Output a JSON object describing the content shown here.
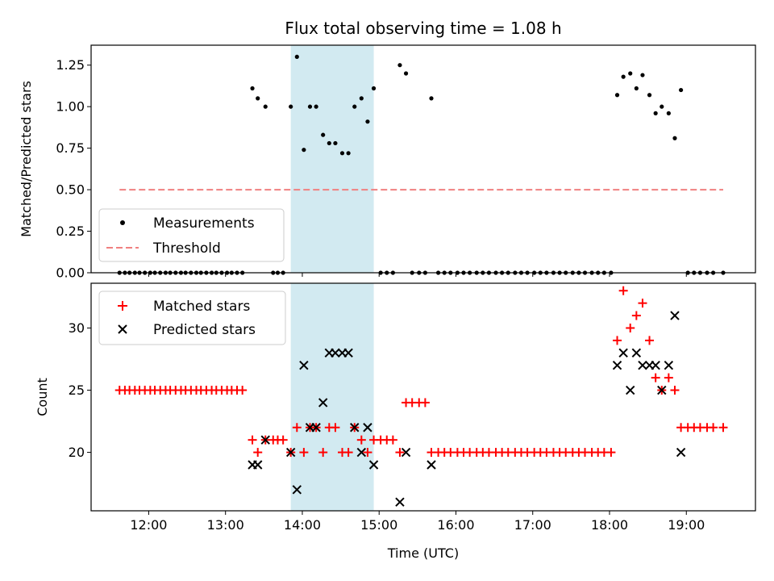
{
  "chart_data": {
    "title": "Flux total observing time = 1.08 h",
    "xlabel": "Time (UTC)",
    "x_tick_labels": [
      "12:00",
      "13:00",
      "14:00",
      "15:00",
      "16:00",
      "17:00",
      "18:00",
      "19:00"
    ],
    "x_tick_hours": [
      12,
      13,
      14,
      15,
      16,
      17,
      18,
      19
    ],
    "xlim_hours": [
      11.25,
      19.9
    ],
    "shaded_interval_hours": [
      13.85,
      14.93
    ],
    "shade_color": "#add8e6",
    "panels": [
      {
        "type": "scatter",
        "ylabel": "Matched/Predicted stars",
        "ylim": [
          0,
          1.37
        ],
        "y_ticks": [
          0.0,
          0.25,
          0.5,
          0.75,
          1.0,
          1.25
        ],
        "y_tick_labels": [
          "0.00",
          "0.25",
          "0.50",
          "0.75",
          "1.00",
          "1.25"
        ],
        "legend_position": "lower-left",
        "series": [
          {
            "name": "Measurements",
            "marker": "dot",
            "color": "#000000",
            "x": [
              11.62,
              11.69,
              11.75,
              11.82,
              11.88,
              11.95,
              12.02,
              12.08,
              12.15,
              12.22,
              12.28,
              12.35,
              12.42,
              12.48,
              12.55,
              12.62,
              12.68,
              12.75,
              12.82,
              12.88,
              12.95,
              13.02,
              13.08,
              13.15,
              13.22,
              13.35,
              13.42,
              13.52,
              13.62,
              13.68,
              13.75,
              13.85,
              13.93,
              14.02,
              14.1,
              14.18,
              14.27,
              14.35,
              14.43,
              14.52,
              14.6,
              14.68,
              14.77,
              14.85,
              14.93,
              15.02,
              15.1,
              15.18,
              15.27,
              15.35,
              15.43,
              15.52,
              15.6,
              15.68,
              15.77,
              15.85,
              15.93,
              16.02,
              16.1,
              16.18,
              16.27,
              16.35,
              16.43,
              16.52,
              16.6,
              16.68,
              16.77,
              16.85,
              16.93,
              17.02,
              17.1,
              17.18,
              17.27,
              17.35,
              17.43,
              17.52,
              17.6,
              17.68,
              17.77,
              17.85,
              17.93,
              18.02,
              18.1,
              18.18,
              18.27,
              18.35,
              18.43,
              18.52,
              18.6,
              18.68,
              18.77,
              18.85,
              18.93,
              19.02,
              19.1,
              19.18,
              19.27,
              19.35,
              19.48
            ],
            "y": [
              0,
              0,
              0,
              0,
              0,
              0,
              0,
              0,
              0,
              0,
              0,
              0,
              0,
              0,
              0,
              0,
              0,
              0,
              0,
              0,
              0,
              0,
              0,
              0,
              0,
              1.11,
              1.05,
              1.0,
              0,
              0,
              0,
              1.0,
              1.3,
              0.74,
              1.0,
              1.0,
              0.83,
              0.78,
              0.78,
              0.72,
              0.72,
              1.0,
              1.05,
              0.91,
              1.11,
              0,
              0,
              0,
              1.25,
              1.2,
              0,
              0,
              0,
              1.05,
              0,
              0,
              0,
              0,
              0,
              0,
              0,
              0,
              0,
              0,
              0,
              0,
              0,
              0,
              0,
              0,
              0,
              0,
              0,
              0,
              0,
              0,
              0,
              0,
              0,
              0,
              0,
              0,
              1.07,
              1.18,
              1.2,
              1.11,
              1.19,
              1.07,
              0.96,
              1.0,
              0.96,
              0.81,
              1.1,
              0,
              0,
              0,
              0,
              0,
              0
            ]
          },
          {
            "name": "Threshold",
            "type": "line",
            "style": "dashed",
            "color": "#f08080",
            "x": [
              11.62,
              19.48
            ],
            "y": [
              0.5,
              0.5
            ]
          }
        ]
      },
      {
        "type": "scatter",
        "ylabel": "Count",
        "ylim": [
          15.3,
          33.6
        ],
        "y_ticks": [
          20,
          25,
          30
        ],
        "y_tick_labels": [
          "20",
          "25",
          "30"
        ],
        "legend_position": "upper-left",
        "series": [
          {
            "name": "Matched stars",
            "marker": "plus",
            "color": "#ff0000",
            "x": [
              11.62,
              11.69,
              11.75,
              11.82,
              11.88,
              11.95,
              12.02,
              12.08,
              12.15,
              12.22,
              12.28,
              12.35,
              12.42,
              12.48,
              12.55,
              12.62,
              12.68,
              12.75,
              12.82,
              12.88,
              12.95,
              13.02,
              13.08,
              13.15,
              13.22,
              13.35,
              13.42,
              13.52,
              13.62,
              13.68,
              13.75,
              13.85,
              13.93,
              14.02,
              14.1,
              14.18,
              14.27,
              14.35,
              14.43,
              14.52,
              14.6,
              14.68,
              14.77,
              14.85,
              14.93,
              15.02,
              15.1,
              15.18,
              15.27,
              15.35,
              15.43,
              15.52,
              15.6,
              15.68,
              15.77,
              15.85,
              15.93,
              16.02,
              16.1,
              16.18,
              16.27,
              16.35,
              16.43,
              16.52,
              16.6,
              16.68,
              16.77,
              16.85,
              16.93,
              17.02,
              17.1,
              17.18,
              17.27,
              17.35,
              17.43,
              17.52,
              17.6,
              17.68,
              17.77,
              17.85,
              17.93,
              18.02,
              18.1,
              18.18,
              18.27,
              18.35,
              18.43,
              18.52,
              18.6,
              18.68,
              18.77,
              18.85,
              18.93,
              19.02,
              19.1,
              19.18,
              19.27,
              19.35,
              19.48
            ],
            "y": [
              25,
              25,
              25,
              25,
              25,
              25,
              25,
              25,
              25,
              25,
              25,
              25,
              25,
              25,
              25,
              25,
              25,
              25,
              25,
              25,
              25,
              25,
              25,
              25,
              25,
              21,
              20,
              21,
              21,
              21,
              21,
              20,
              22,
              20,
              22,
              22,
              20,
              22,
              22,
              20,
              20,
              22,
              21,
              20,
              21,
              21,
              21,
              21,
              20,
              24,
              24,
              24,
              24,
              20,
              20,
              20,
              20,
              20,
              20,
              20,
              20,
              20,
              20,
              20,
              20,
              20,
              20,
              20,
              20,
              20,
              20,
              20,
              20,
              20,
              20,
              20,
              20,
              20,
              20,
              20,
              20,
              20,
              29,
              33,
              30,
              31,
              32,
              29,
              26,
              25,
              26,
              25,
              22,
              22,
              22,
              22,
              22,
              22,
              22
            ]
          },
          {
            "name": "Predicted stars",
            "marker": "x",
            "color": "#000000",
            "x": [
              13.35,
              13.42,
              13.52,
              13.85,
              13.93,
              14.02,
              14.1,
              14.18,
              14.27,
              14.35,
              14.43,
              14.52,
              14.6,
              14.68,
              14.77,
              14.85,
              14.93,
              15.27,
              15.35,
              15.68,
              18.1,
              18.18,
              18.27,
              18.35,
              18.43,
              18.52,
              18.6,
              18.68,
              18.77,
              18.85,
              18.93
            ],
            "y": [
              19,
              19,
              21,
              20,
              17,
              27,
              22,
              22,
              24,
              28,
              28,
              28,
              28,
              22,
              20,
              22,
              19,
              16,
              20,
              19,
              27,
              28,
              25,
              28,
              27,
              27,
              27,
              25,
              27,
              31,
              20
            ]
          }
        ]
      }
    ]
  }
}
